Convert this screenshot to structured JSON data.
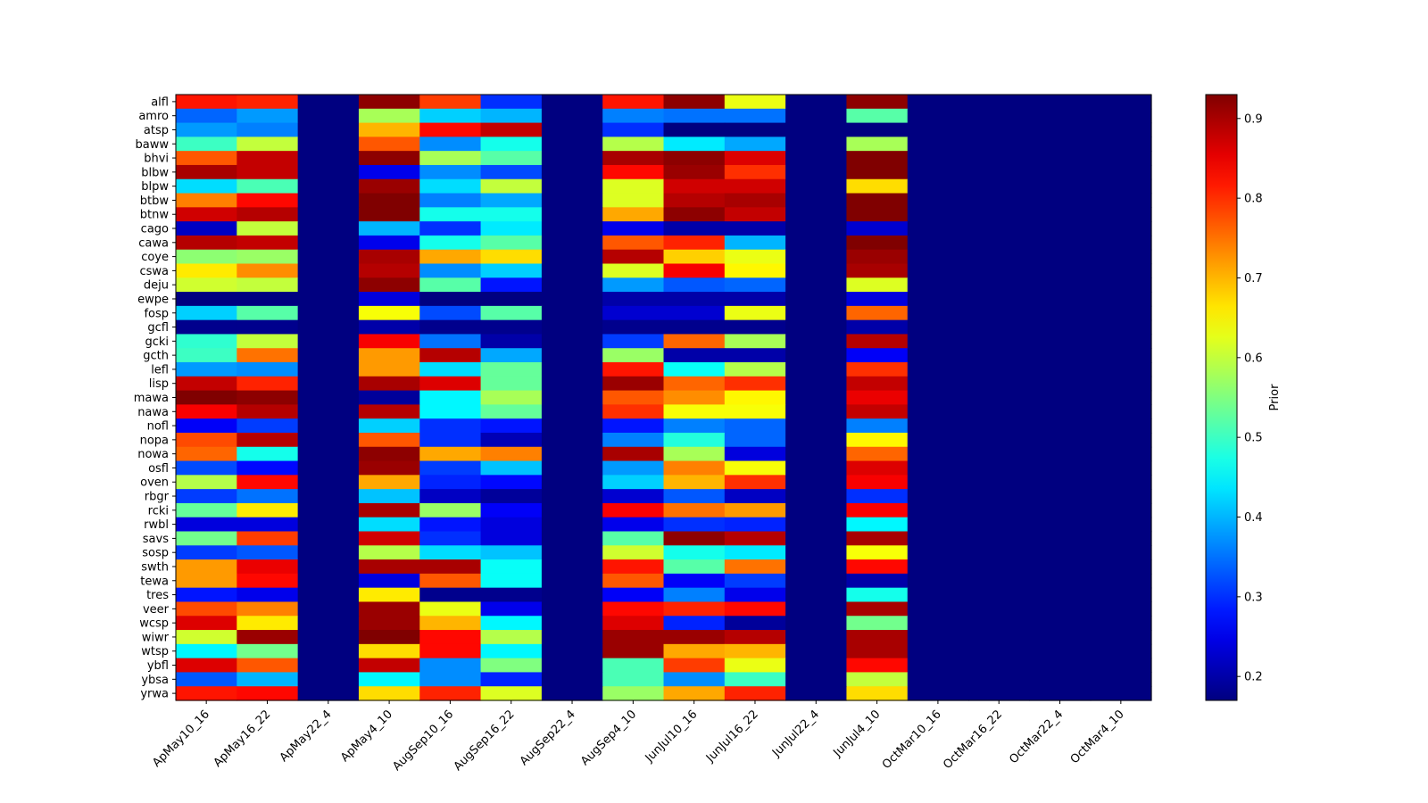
{
  "chart_data": {
    "type": "heatmap",
    "title": "",
    "xlabel": "",
    "ylabel": "",
    "colormap": "jet",
    "colorbar": {
      "label": "Prior",
      "range": [
        0.17,
        0.93
      ],
      "ticks": [
        0.2,
        0.3,
        0.4,
        0.5,
        0.6,
        0.7,
        0.8,
        0.9
      ],
      "tick_labels": [
        "0.2",
        "0.3",
        "0.4",
        "0.5",
        "0.6",
        "0.7",
        "0.8",
        "0.9"
      ]
    },
    "x_categories": [
      "ApMay10_16",
      "ApMay16_22",
      "ApMay22_4",
      "ApMay4_10",
      "AugSep10_16",
      "AugSep16_22",
      "AugSep22_4",
      "AugSep4_10",
      "JunJul10_16",
      "JunJul16_22",
      "JunJul22_4",
      "JunJul4_10",
      "OctMar10_16",
      "OctMar16_22",
      "OctMar22_4",
      "OctMar4_10"
    ],
    "y_categories": [
      "alfl",
      "amro",
      "atsp",
      "baww",
      "bhvi",
      "blbw",
      "blpw",
      "btbw",
      "btnw",
      "cago",
      "cawa",
      "coye",
      "cswa",
      "deju",
      "ewpe",
      "fosp",
      "gcfl",
      "gcki",
      "gcth",
      "lefl",
      "lisp",
      "mawa",
      "nawa",
      "nofl",
      "nopa",
      "nowa",
      "osfl",
      "oven",
      "rbgr",
      "rcki",
      "rwbl",
      "savs",
      "sosp",
      "swth",
      "tewa",
      "tres",
      "veer",
      "wcsp",
      "wiwr",
      "wtsp",
      "ybfl",
      "ybsa",
      "yrwa"
    ],
    "values": [
      [
        0.82,
        0.81,
        0.17,
        0.92,
        0.79,
        0.3,
        0.17,
        0.82,
        0.92,
        0.63,
        0.17,
        0.92,
        0.17,
        0.17,
        0.17,
        0.17
      ],
      [
        0.34,
        0.38,
        0.17,
        0.58,
        0.42,
        0.4,
        0.17,
        0.36,
        0.35,
        0.35,
        0.17,
        0.52,
        0.17,
        0.17,
        0.17,
        0.17
      ],
      [
        0.38,
        0.36,
        0.17,
        0.7,
        0.83,
        0.88,
        0.17,
        0.3,
        0.17,
        0.17,
        0.17,
        0.17,
        0.17,
        0.17,
        0.17,
        0.17
      ],
      [
        0.5,
        0.6,
        0.17,
        0.77,
        0.37,
        0.47,
        0.17,
        0.59,
        0.44,
        0.39,
        0.17,
        0.58,
        0.17,
        0.17,
        0.17,
        0.17
      ],
      [
        0.77,
        0.88,
        0.17,
        0.92,
        0.58,
        0.52,
        0.17,
        0.9,
        0.92,
        0.86,
        0.17,
        0.93,
        0.17,
        0.17,
        0.17,
        0.17
      ],
      [
        0.9,
        0.88,
        0.17,
        0.25,
        0.37,
        0.32,
        0.17,
        0.83,
        0.91,
        0.8,
        0.17,
        0.93,
        0.17,
        0.17,
        0.17,
        0.17
      ],
      [
        0.43,
        0.51,
        0.17,
        0.91,
        0.43,
        0.6,
        0.17,
        0.62,
        0.87,
        0.87,
        0.17,
        0.67,
        0.17,
        0.17,
        0.17,
        0.17
      ],
      [
        0.74,
        0.83,
        0.17,
        0.93,
        0.36,
        0.39,
        0.17,
        0.62,
        0.89,
        0.9,
        0.17,
        0.93,
        0.17,
        0.17,
        0.17,
        0.17
      ],
      [
        0.87,
        0.89,
        0.17,
        0.93,
        0.47,
        0.47,
        0.17,
        0.71,
        0.92,
        0.88,
        0.17,
        0.93,
        0.17,
        0.17,
        0.17,
        0.17
      ],
      [
        0.22,
        0.6,
        0.17,
        0.4,
        0.3,
        0.44,
        0.17,
        0.25,
        0.2,
        0.2,
        0.17,
        0.23,
        0.17,
        0.17,
        0.17,
        0.17
      ],
      [
        0.89,
        0.88,
        0.17,
        0.25,
        0.47,
        0.52,
        0.17,
        0.77,
        0.81,
        0.4,
        0.17,
        0.93,
        0.17,
        0.17,
        0.17,
        0.17
      ],
      [
        0.56,
        0.57,
        0.17,
        0.9,
        0.71,
        0.67,
        0.17,
        0.89,
        0.68,
        0.63,
        0.17,
        0.91,
        0.17,
        0.17,
        0.17,
        0.17
      ],
      [
        0.66,
        0.73,
        0.17,
        0.89,
        0.37,
        0.42,
        0.17,
        0.62,
        0.84,
        0.65,
        0.17,
        0.9,
        0.17,
        0.17,
        0.17,
        0.17
      ],
      [
        0.61,
        0.6,
        0.17,
        0.92,
        0.52,
        0.28,
        0.17,
        0.38,
        0.33,
        0.34,
        0.17,
        0.62,
        0.17,
        0.17,
        0.17,
        0.17
      ],
      [
        0.17,
        0.17,
        0.17,
        0.24,
        0.17,
        0.17,
        0.17,
        0.2,
        0.2,
        0.2,
        0.17,
        0.24,
        0.17,
        0.17,
        0.17,
        0.17
      ],
      [
        0.42,
        0.52,
        0.17,
        0.64,
        0.32,
        0.52,
        0.17,
        0.23,
        0.23,
        0.63,
        0.17,
        0.76,
        0.17,
        0.17,
        0.17,
        0.17
      ],
      [
        0.18,
        0.18,
        0.17,
        0.2,
        0.18,
        0.18,
        0.17,
        0.18,
        0.18,
        0.18,
        0.17,
        0.2,
        0.17,
        0.17,
        0.17,
        0.17
      ],
      [
        0.49,
        0.6,
        0.17,
        0.84,
        0.35,
        0.2,
        0.17,
        0.31,
        0.76,
        0.58,
        0.17,
        0.89,
        0.17,
        0.17,
        0.17,
        0.17
      ],
      [
        0.5,
        0.75,
        0.17,
        0.72,
        0.89,
        0.39,
        0.17,
        0.57,
        0.2,
        0.2,
        0.17,
        0.26,
        0.17,
        0.17,
        0.17,
        0.17
      ],
      [
        0.38,
        0.37,
        0.17,
        0.72,
        0.43,
        0.53,
        0.17,
        0.82,
        0.46,
        0.59,
        0.17,
        0.8,
        0.17,
        0.17,
        0.17,
        0.17
      ],
      [
        0.88,
        0.81,
        0.17,
        0.9,
        0.86,
        0.53,
        0.17,
        0.91,
        0.76,
        0.8,
        0.17,
        0.88,
        0.17,
        0.17,
        0.17,
        0.17
      ],
      [
        0.93,
        0.92,
        0.17,
        0.19,
        0.45,
        0.58,
        0.17,
        0.77,
        0.73,
        0.65,
        0.17,
        0.85,
        0.17,
        0.17,
        0.17,
        0.17
      ],
      [
        0.84,
        0.89,
        0.17,
        0.89,
        0.45,
        0.53,
        0.17,
        0.8,
        0.64,
        0.64,
        0.17,
        0.88,
        0.17,
        0.17,
        0.17,
        0.17
      ],
      [
        0.26,
        0.31,
        0.17,
        0.42,
        0.3,
        0.28,
        0.17,
        0.28,
        0.36,
        0.34,
        0.17,
        0.36,
        0.17,
        0.17,
        0.17,
        0.17
      ],
      [
        0.78,
        0.89,
        0.17,
        0.77,
        0.3,
        0.21,
        0.17,
        0.36,
        0.48,
        0.34,
        0.17,
        0.65,
        0.17,
        0.17,
        0.17,
        0.17
      ],
      [
        0.76,
        0.47,
        0.17,
        0.92,
        0.71,
        0.74,
        0.17,
        0.9,
        0.58,
        0.24,
        0.17,
        0.76,
        0.17,
        0.17,
        0.17,
        0.17
      ],
      [
        0.32,
        0.27,
        0.17,
        0.91,
        0.31,
        0.41,
        0.17,
        0.38,
        0.74,
        0.64,
        0.17,
        0.86,
        0.17,
        0.17,
        0.17,
        0.17
      ],
      [
        0.59,
        0.83,
        0.17,
        0.71,
        0.29,
        0.27,
        0.17,
        0.42,
        0.7,
        0.8,
        0.17,
        0.84,
        0.17,
        0.17,
        0.17,
        0.17
      ],
      [
        0.31,
        0.35,
        0.17,
        0.41,
        0.22,
        0.19,
        0.17,
        0.23,
        0.33,
        0.22,
        0.17,
        0.3,
        0.17,
        0.17,
        0.17,
        0.17
      ],
      [
        0.53,
        0.66,
        0.17,
        0.9,
        0.57,
        0.26,
        0.17,
        0.84,
        0.75,
        0.72,
        0.17,
        0.84,
        0.17,
        0.17,
        0.17,
        0.17
      ],
      [
        0.24,
        0.24,
        0.17,
        0.43,
        0.28,
        0.24,
        0.17,
        0.25,
        0.3,
        0.29,
        0.17,
        0.45,
        0.17,
        0.17,
        0.17,
        0.17
      ],
      [
        0.54,
        0.79,
        0.17,
        0.87,
        0.3,
        0.24,
        0.17,
        0.52,
        0.92,
        0.89,
        0.17,
        0.9,
        0.17,
        0.17,
        0.17,
        0.17
      ],
      [
        0.31,
        0.33,
        0.17,
        0.59,
        0.43,
        0.41,
        0.17,
        0.61,
        0.47,
        0.44,
        0.17,
        0.64,
        0.17,
        0.17,
        0.17,
        0.17
      ],
      [
        0.72,
        0.85,
        0.17,
        0.9,
        0.9,
        0.46,
        0.17,
        0.82,
        0.52,
        0.75,
        0.17,
        0.83,
        0.17,
        0.17,
        0.17,
        0.17
      ],
      [
        0.72,
        0.83,
        0.17,
        0.24,
        0.77,
        0.46,
        0.17,
        0.77,
        0.26,
        0.31,
        0.17,
        0.2,
        0.17,
        0.17,
        0.17,
        0.17
      ],
      [
        0.28,
        0.25,
        0.17,
        0.66,
        0.18,
        0.18,
        0.17,
        0.26,
        0.36,
        0.25,
        0.17,
        0.47,
        0.17,
        0.17,
        0.17,
        0.17
      ],
      [
        0.78,
        0.74,
        0.17,
        0.91,
        0.63,
        0.25,
        0.17,
        0.83,
        0.81,
        0.83,
        0.17,
        0.9,
        0.17,
        0.17,
        0.17,
        0.17
      ],
      [
        0.86,
        0.66,
        0.17,
        0.91,
        0.7,
        0.45,
        0.17,
        0.86,
        0.29,
        0.19,
        0.17,
        0.54,
        0.17,
        0.17,
        0.17,
        0.17
      ],
      [
        0.61,
        0.91,
        0.17,
        0.93,
        0.83,
        0.59,
        0.17,
        0.91,
        0.91,
        0.89,
        0.17,
        0.9,
        0.17,
        0.17,
        0.17,
        0.17
      ],
      [
        0.45,
        0.54,
        0.17,
        0.67,
        0.83,
        0.45,
        0.17,
        0.91,
        0.71,
        0.7,
        0.17,
        0.9,
        0.17,
        0.17,
        0.17,
        0.17
      ],
      [
        0.86,
        0.77,
        0.17,
        0.88,
        0.37,
        0.55,
        0.17,
        0.51,
        0.79,
        0.63,
        0.17,
        0.83,
        0.17,
        0.17,
        0.17,
        0.17
      ],
      [
        0.33,
        0.4,
        0.17,
        0.45,
        0.37,
        0.29,
        0.17,
        0.51,
        0.37,
        0.5,
        0.17,
        0.6,
        0.17,
        0.17,
        0.17,
        0.17
      ],
      [
        0.82,
        0.83,
        0.17,
        0.67,
        0.81,
        0.62,
        0.17,
        0.57,
        0.71,
        0.81,
        0.17,
        0.67,
        0.17,
        0.17,
        0.17,
        0.17
      ]
    ],
    "grid": false,
    "legend": "colorbar-right"
  }
}
